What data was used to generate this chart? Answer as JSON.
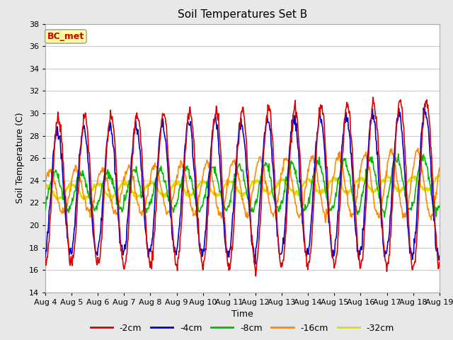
{
  "title": "Soil Temperatures Set B",
  "xlabel": "Time",
  "ylabel": "Soil Temperature (C)",
  "ylim": [
    14,
    38
  ],
  "xlim": [
    0,
    15
  ],
  "figure_bg": "#e8e8e8",
  "plot_bg": "#ffffff",
  "label_box_text": "BC_met",
  "label_box_facecolor": "#ffff99",
  "label_box_edgecolor": "#aaaaaa",
  "label_box_textcolor": "#cc0000",
  "series": {
    "-2cm": {
      "color": "#dd0000",
      "lw": 1.2
    },
    "-4cm": {
      "color": "#0000cc",
      "lw": 1.2
    },
    "-8cm": {
      "color": "#00bb00",
      "lw": 1.2
    },
    "-16cm": {
      "color": "#ff8800",
      "lw": 1.2
    },
    "-32cm": {
      "color": "#dddd00",
      "lw": 1.8
    }
  },
  "tick_labels": [
    "Aug 4",
    "Aug 5",
    "Aug 6",
    "Aug 7",
    "Aug 8",
    "Aug 9",
    "Aug 10",
    "Aug 11",
    "Aug 12",
    "Aug 13",
    "Aug 14",
    "Aug 15",
    "Aug 16",
    "Aug 17",
    "Aug 18",
    "Aug 19"
  ],
  "yticks": [
    14,
    16,
    18,
    20,
    22,
    24,
    26,
    28,
    30,
    32,
    34,
    36,
    38
  ],
  "base_mean": 23.0,
  "base_trend": 0.05,
  "amp_2cm_start": 6.5,
  "amp_2cm_end": 7.5,
  "amp_4cm_start": 5.5,
  "amp_4cm_end": 6.5,
  "amp_8cm_start": 1.5,
  "amp_8cm_end": 2.5,
  "amp_16cm_start": 1.8,
  "amp_16cm_end": 3.0,
  "amp_32cm": 0.6,
  "phase_2cm": -1.5708,
  "phase_4cm": -1.3,
  "phase_8cm": -0.8,
  "phase_16cm": 0.5,
  "phase_32cm": 1.5
}
